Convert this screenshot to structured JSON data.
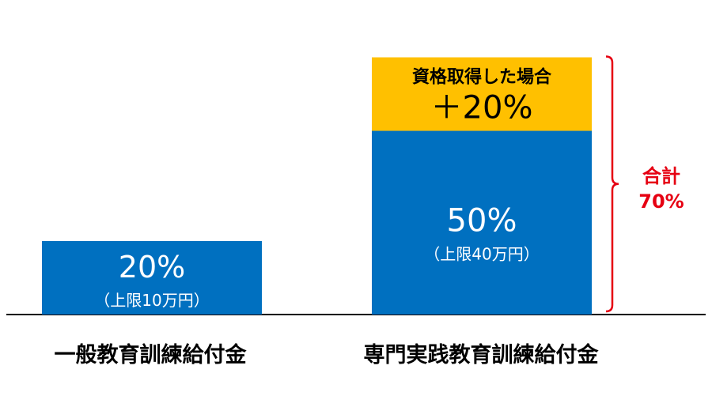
{
  "chart_data": {
    "type": "bar",
    "categories": [
      "一般教育訓練給付金",
      "専門実践教育訓練給付金"
    ],
    "series": [
      {
        "values": [
          20,
          50
        ],
        "value_labels": [
          "20%",
          "50%"
        ],
        "sub_labels": [
          "（上限10万円）",
          "（上限40万円）"
        ],
        "color": "#0070c0"
      },
      {
        "values": [
          0,
          20
        ],
        "segment_title": "資格取得した場合",
        "value_label": "＋20%",
        "color": "#ffc000"
      }
    ],
    "total": {
      "label": "合計",
      "value": "70%",
      "color": "#e60012"
    },
    "ylim": [
      0,
      77
    ],
    "axis_color": "#000000"
  }
}
